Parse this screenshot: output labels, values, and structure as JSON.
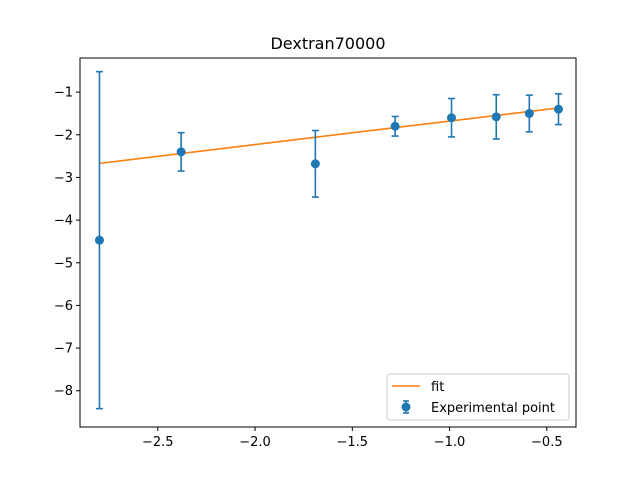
{
  "chart_data": {
    "type": "scatter",
    "title": "Dextran70000",
    "xlabel": "",
    "ylabel": "",
    "xlim": [
      -2.9,
      -0.35
    ],
    "ylim": [
      -8.85,
      -0.2
    ],
    "xticks": [
      -2.5,
      -2.0,
      -1.5,
      -1.0,
      -0.5
    ],
    "xtick_labels": [
      "−2.5",
      "−2.0",
      "−1.5",
      "−1.0",
      "−0.5"
    ],
    "yticks": [
      -8,
      -7,
      -6,
      -5,
      -4,
      -3,
      -2,
      -1
    ],
    "ytick_labels": [
      "−8",
      "−7",
      "−6",
      "−5",
      "−4",
      "−3",
      "−2",
      "−1"
    ],
    "legend_position": "bottom-right",
    "grid": false,
    "series": [
      {
        "name": "fit",
        "kind": "line",
        "color": "#ff7f0e",
        "x": [
          -2.8,
          -0.44
        ],
        "y": [
          -2.67,
          -1.37
        ]
      },
      {
        "name": "Experimental point",
        "kind": "errorbar",
        "color": "#1f77b4",
        "x": [
          -2.8,
          -2.38,
          -1.69,
          -1.28,
          -0.99,
          -0.76,
          -0.59,
          -0.44
        ],
        "y": [
          -4.47,
          -2.4,
          -2.68,
          -1.8,
          -1.6,
          -1.58,
          -1.5,
          -1.4
        ],
        "yerr": [
          3.95,
          0.45,
          0.78,
          0.23,
          0.45,
          0.52,
          0.43,
          0.36
        ]
      }
    ]
  }
}
